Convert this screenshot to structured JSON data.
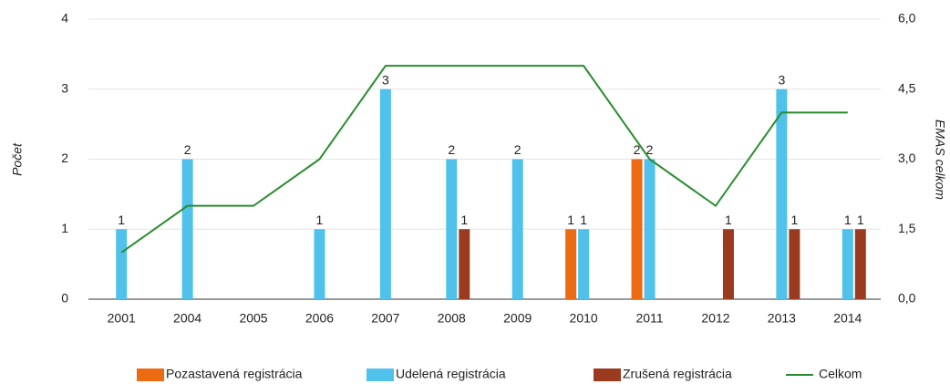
{
  "chart_data": {
    "type": "bar",
    "categories": [
      "2001",
      "2004",
      "2005",
      "2006",
      "2007",
      "2008",
      "2009",
      "2010",
      "2011",
      "2012",
      "2013",
      "2014"
    ],
    "series": [
      {
        "name": "Pozastavená registrácia",
        "color": "#ec6a12",
        "values": [
          null,
          null,
          null,
          null,
          null,
          null,
          null,
          1,
          2,
          null,
          null,
          null
        ]
      },
      {
        "name": "Udelená registrácia",
        "color": "#4fc1ea",
        "values": [
          1,
          2,
          null,
          1,
          3,
          2,
          2,
          1,
          2,
          null,
          3,
          1
        ]
      },
      {
        "name": "Zrušená registrácia",
        "color": "#9a3a1e",
        "values": [
          null,
          null,
          null,
          null,
          null,
          1,
          null,
          null,
          null,
          1,
          1,
          1
        ]
      },
      {
        "name": "Celkom",
        "type": "line",
        "axis": "y2",
        "color": "#2a8c2f",
        "values": [
          1,
          2,
          2,
          3,
          5,
          5,
          5,
          5,
          3,
          2,
          4,
          4
        ]
      }
    ],
    "ylabel": "Počet",
    "y2label": "EMAS celkom",
    "ylim": [
      0,
      4
    ],
    "yticks": [
      0,
      1,
      2,
      3,
      4
    ],
    "y2lim": [
      0,
      6
    ],
    "y2ticks": [
      {
        "value": 0,
        "label": "0,0"
      },
      {
        "value": 1.5,
        "label": "1,5"
      },
      {
        "value": 3,
        "label": "3,0"
      },
      {
        "value": 4.5,
        "label": "4,5"
      },
      {
        "value": 6,
        "label": "6,0"
      }
    ],
    "grid": true,
    "legend": "bottom"
  }
}
